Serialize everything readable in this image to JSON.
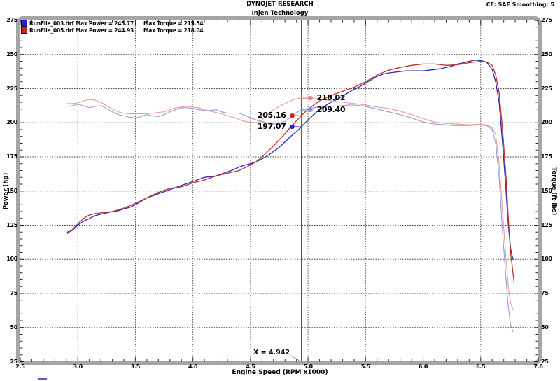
{
  "header": {
    "title": "DYNOJET RESEARCH",
    "subtitle": "Injen Technology",
    "right_label": "CF: SAE  Smoothing: 5"
  },
  "legend": {
    "rows": [
      {
        "swatch_color": "#2222c8",
        "file_label": "RunFile_003.drf Max Power = 245.77",
        "torque_label": "Max Torque = 215.54"
      },
      {
        "swatch_color": "#d02020",
        "file_label": "RunFile_005.drf Max Power = 244.93",
        "torque_label": "Max Torque = 218.04"
      }
    ]
  },
  "cursor": {
    "label": "X = 4.942",
    "x": 4.942
  },
  "annotations": [
    {
      "label": "218.02",
      "value": 218.02,
      "side": "right",
      "color": "#e88383"
    },
    {
      "label": "209.40",
      "value": 209.4,
      "side": "right",
      "color": "#8c8ce0"
    },
    {
      "label": "205.16",
      "value": 205.16,
      "side": "left",
      "color": "#d02020"
    },
    {
      "label": "197.07",
      "value": 197.07,
      "side": "left",
      "color": "#2222c8"
    }
  ],
  "chart_data": {
    "type": "line",
    "title": "DYNOJET RESEARCH",
    "subtitle": "Injen Technology",
    "xlabel": "Engine Speed (RPM x1000)",
    "ylabel_left": "Power (hp)",
    "ylabel_right": "Torque (ft-lbs)",
    "xlim": [
      2.5,
      7.0
    ],
    "ylim": [
      25,
      275
    ],
    "x_ticks": [
      2.5,
      3.0,
      3.5,
      4.0,
      4.5,
      5.0,
      5.5,
      6.0,
      6.5,
      7.0
    ],
    "y_ticks": [
      25,
      50,
      75,
      100,
      125,
      150,
      175,
      200,
      225,
      250,
      275
    ],
    "x_minor_step": 0.1,
    "y_minor_step": 5,
    "grid": "dashed",
    "cursor_x": 4.942,
    "series": [
      {
        "name": "runfile-003-power",
        "label": "RunFile_003.drf Power",
        "color": "#2a2ab4",
        "width": 1.3,
        "points": [
          [
            2.91,
            120
          ],
          [
            2.95,
            121
          ],
          [
            3.0,
            125
          ],
          [
            3.05,
            128
          ],
          [
            3.1,
            130
          ],
          [
            3.15,
            132
          ],
          [
            3.2,
            133
          ],
          [
            3.3,
            135
          ],
          [
            3.35,
            135.5
          ],
          [
            3.4,
            137
          ],
          [
            3.45,
            138
          ],
          [
            3.5,
            140
          ],
          [
            3.55,
            142.5
          ],
          [
            3.6,
            145
          ],
          [
            3.65,
            146.5
          ],
          [
            3.7,
            148
          ],
          [
            3.75,
            149.5
          ],
          [
            3.8,
            151
          ],
          [
            3.85,
            152.5
          ],
          [
            3.9,
            154
          ],
          [
            3.95,
            155.5
          ],
          [
            4.0,
            157
          ],
          [
            4.05,
            158.5
          ],
          [
            4.1,
            160
          ],
          [
            4.15,
            160.5
          ],
          [
            4.2,
            161
          ],
          [
            4.25,
            162.5
          ],
          [
            4.3,
            164
          ],
          [
            4.35,
            165.5
          ],
          [
            4.4,
            167.5
          ],
          [
            4.45,
            169
          ],
          [
            4.5,
            170
          ],
          [
            4.55,
            171.5
          ],
          [
            4.6,
            173.5
          ],
          [
            4.65,
            176
          ],
          [
            4.7,
            179
          ],
          [
            4.75,
            182
          ],
          [
            4.8,
            186
          ],
          [
            4.85,
            190
          ],
          [
            4.9,
            193.5
          ],
          [
            4.942,
            197.1
          ],
          [
            5.0,
            202
          ],
          [
            5.05,
            206
          ],
          [
            5.1,
            210
          ],
          [
            5.15,
            212.5
          ],
          [
            5.2,
            215
          ],
          [
            5.25,
            217
          ],
          [
            5.3,
            219.5
          ],
          [
            5.35,
            222
          ],
          [
            5.4,
            224.5
          ],
          [
            5.45,
            226.5
          ],
          [
            5.5,
            229
          ],
          [
            5.55,
            231.5
          ],
          [
            5.6,
            234
          ],
          [
            5.65,
            235.5
          ],
          [
            5.7,
            236.5
          ],
          [
            5.75,
            237
          ],
          [
            5.8,
            237.5
          ],
          [
            5.85,
            238
          ],
          [
            5.9,
            238
          ],
          [
            6.0,
            238
          ],
          [
            6.05,
            238.5
          ],
          [
            6.1,
            239
          ],
          [
            6.15,
            239.5
          ],
          [
            6.2,
            240.5
          ],
          [
            6.25,
            241.5
          ],
          [
            6.3,
            243
          ],
          [
            6.35,
            244
          ],
          [
            6.4,
            245
          ],
          [
            6.45,
            245.8
          ],
          [
            6.5,
            245.5
          ],
          [
            6.55,
            244.5
          ],
          [
            6.6,
            239
          ],
          [
            6.63,
            230
          ],
          [
            6.66,
            215
          ],
          [
            6.69,
            185
          ],
          [
            6.72,
            150
          ],
          [
            6.74,
            125
          ],
          [
            6.76,
            108
          ],
          [
            6.78,
            100
          ]
        ]
      },
      {
        "name": "runfile-005-power",
        "label": "RunFile_005.drf Power",
        "color": "#c23028",
        "width": 1.3,
        "points": [
          [
            2.91,
            119
          ],
          [
            2.95,
            121.5
          ],
          [
            3.0,
            126
          ],
          [
            3.05,
            130
          ],
          [
            3.1,
            132.5
          ],
          [
            3.15,
            133.5
          ],
          [
            3.2,
            134
          ],
          [
            3.25,
            134.5
          ],
          [
            3.3,
            135
          ],
          [
            3.4,
            137.5
          ],
          [
            3.5,
            141
          ],
          [
            3.55,
            143
          ],
          [
            3.6,
            145
          ],
          [
            3.7,
            149
          ],
          [
            3.8,
            152
          ],
          [
            3.85,
            152.5
          ],
          [
            3.9,
            153
          ],
          [
            3.95,
            154.5
          ],
          [
            4.0,
            156
          ],
          [
            4.1,
            158
          ],
          [
            4.2,
            161
          ],
          [
            4.3,
            163
          ],
          [
            4.4,
            165
          ],
          [
            4.5,
            169
          ],
          [
            4.55,
            171.5
          ],
          [
            4.6,
            175
          ],
          [
            4.65,
            179
          ],
          [
            4.7,
            183
          ],
          [
            4.75,
            187.5
          ],
          [
            4.8,
            192
          ],
          [
            4.85,
            197
          ],
          [
            4.9,
            201.5
          ],
          [
            4.942,
            205.2
          ],
          [
            5.0,
            210
          ],
          [
            5.05,
            213
          ],
          [
            5.1,
            216
          ],
          [
            5.15,
            218
          ],
          [
            5.2,
            220
          ],
          [
            5.3,
            223
          ],
          [
            5.4,
            226
          ],
          [
            5.5,
            230
          ],
          [
            5.55,
            232.5
          ],
          [
            5.6,
            235
          ],
          [
            5.7,
            238.5
          ],
          [
            5.8,
            240.5
          ],
          [
            5.9,
            242
          ],
          [
            6.0,
            243
          ],
          [
            6.1,
            243
          ],
          [
            6.2,
            242
          ],
          [
            6.3,
            242.5
          ],
          [
            6.4,
            244
          ],
          [
            6.5,
            244.9
          ],
          [
            6.55,
            244.5
          ],
          [
            6.6,
            242
          ],
          [
            6.63,
            235
          ],
          [
            6.66,
            222
          ],
          [
            6.69,
            195
          ],
          [
            6.72,
            160
          ],
          [
            6.74,
            130
          ],
          [
            6.76,
            105
          ],
          [
            6.79,
            83
          ]
        ]
      },
      {
        "name": "runfile-003-torque",
        "label": "RunFile_003.drf Torque",
        "color": "#9a9adc",
        "width": 1.1,
        "points": [
          [
            2.91,
            212
          ],
          [
            2.95,
            212.5
          ],
          [
            3.0,
            213.5
          ],
          [
            3.05,
            212.5
          ],
          [
            3.1,
            211
          ],
          [
            3.15,
            212
          ],
          [
            3.2,
            212.5
          ],
          [
            3.25,
            210.5
          ],
          [
            3.3,
            208
          ],
          [
            3.35,
            206
          ],
          [
            3.4,
            205
          ],
          [
            3.45,
            204
          ],
          [
            3.5,
            203.5
          ],
          [
            3.55,
            204.5
          ],
          [
            3.6,
            206
          ],
          [
            3.65,
            205
          ],
          [
            3.7,
            204.5
          ],
          [
            3.75,
            206
          ],
          [
            3.8,
            208
          ],
          [
            3.85,
            209.5
          ],
          [
            3.9,
            211
          ],
          [
            3.95,
            211
          ],
          [
            4.0,
            210.5
          ],
          [
            4.05,
            209.5
          ],
          [
            4.1,
            209
          ],
          [
            4.15,
            209
          ],
          [
            4.2,
            209.5
          ],
          [
            4.25,
            208
          ],
          [
            4.3,
            207
          ],
          [
            4.35,
            207
          ],
          [
            4.4,
            207
          ],
          [
            4.45,
            205.5
          ],
          [
            4.5,
            203.5
          ],
          [
            4.55,
            202
          ],
          [
            4.6,
            201
          ],
          [
            4.65,
            199.5
          ],
          [
            4.7,
            199
          ],
          [
            4.75,
            199.5
          ],
          [
            4.8,
            201
          ],
          [
            4.85,
            204
          ],
          [
            4.9,
            207.5
          ],
          [
            4.942,
            209.4
          ],
          [
            5.0,
            210.5
          ],
          [
            5.1,
            211.5
          ],
          [
            5.2,
            212
          ],
          [
            5.3,
            212.5
          ],
          [
            5.35,
            213
          ],
          [
            5.4,
            213
          ],
          [
            5.5,
            212
          ],
          [
            5.6,
            210
          ],
          [
            5.7,
            208
          ],
          [
            5.8,
            206
          ],
          [
            5.9,
            203.5
          ],
          [
            6.0,
            200.5
          ],
          [
            6.1,
            199
          ],
          [
            6.2,
            198.5
          ],
          [
            6.25,
            198
          ],
          [
            6.3,
            198
          ],
          [
            6.4,
            198
          ],
          [
            6.5,
            198.5
          ],
          [
            6.55,
            198
          ],
          [
            6.6,
            195
          ],
          [
            6.63,
            185
          ],
          [
            6.66,
            160
          ],
          [
            6.69,
            120
          ],
          [
            6.72,
            85
          ],
          [
            6.74,
            65
          ],
          [
            6.76,
            52
          ],
          [
            6.78,
            47
          ]
        ]
      },
      {
        "name": "runfile-005-torque",
        "label": "RunFile_005.drf Torque",
        "color": "#e89c9c",
        "width": 1.1,
        "points": [
          [
            2.91,
            214
          ],
          [
            2.95,
            214
          ],
          [
            3.0,
            214.5
          ],
          [
            3.05,
            216
          ],
          [
            3.1,
            217
          ],
          [
            3.15,
            216.5
          ],
          [
            3.2,
            215
          ],
          [
            3.25,
            212.5
          ],
          [
            3.3,
            210
          ],
          [
            3.35,
            208
          ],
          [
            3.4,
            207
          ],
          [
            3.45,
            206.5
          ],
          [
            3.5,
            206.5
          ],
          [
            3.55,
            206.5
          ],
          [
            3.6,
            206.5
          ],
          [
            3.65,
            207
          ],
          [
            3.7,
            207.5
          ],
          [
            3.75,
            208
          ],
          [
            3.8,
            209.5
          ],
          [
            3.85,
            211
          ],
          [
            3.9,
            211.5
          ],
          [
            3.95,
            212
          ],
          [
            4.0,
            211.5
          ],
          [
            4.05,
            211
          ],
          [
            4.1,
            209.5
          ],
          [
            4.15,
            208.5
          ],
          [
            4.2,
            207.5
          ],
          [
            4.25,
            206.5
          ],
          [
            4.3,
            205
          ],
          [
            4.35,
            204
          ],
          [
            4.4,
            202.5
          ],
          [
            4.45,
            201
          ],
          [
            4.5,
            200.5
          ],
          [
            4.55,
            200
          ],
          [
            4.6,
            202
          ],
          [
            4.65,
            206
          ],
          [
            4.7,
            209.5
          ],
          [
            4.75,
            212
          ],
          [
            4.8,
            214
          ],
          [
            4.85,
            216
          ],
          [
            4.9,
            217.5
          ],
          [
            4.942,
            218
          ],
          [
            5.0,
            218
          ],
          [
            5.05,
            217.5
          ],
          [
            5.1,
            217.5
          ],
          [
            5.2,
            216
          ],
          [
            5.3,
            215
          ],
          [
            5.4,
            214
          ],
          [
            5.5,
            213
          ],
          [
            5.6,
            211.5
          ],
          [
            5.7,
            210.5
          ],
          [
            5.8,
            208.5
          ],
          [
            5.9,
            206
          ],
          [
            6.0,
            203
          ],
          [
            6.1,
            200.5
          ],
          [
            6.2,
            199.5
          ],
          [
            6.3,
            199
          ],
          [
            6.4,
            198.5
          ],
          [
            6.5,
            199
          ],
          [
            6.55,
            198.5
          ],
          [
            6.6,
            196.5
          ],
          [
            6.63,
            191
          ],
          [
            6.66,
            170
          ],
          [
            6.69,
            135
          ],
          [
            6.72,
            100
          ],
          [
            6.74,
            80
          ],
          [
            6.76,
            68
          ],
          [
            6.78,
            63
          ]
        ]
      }
    ]
  }
}
